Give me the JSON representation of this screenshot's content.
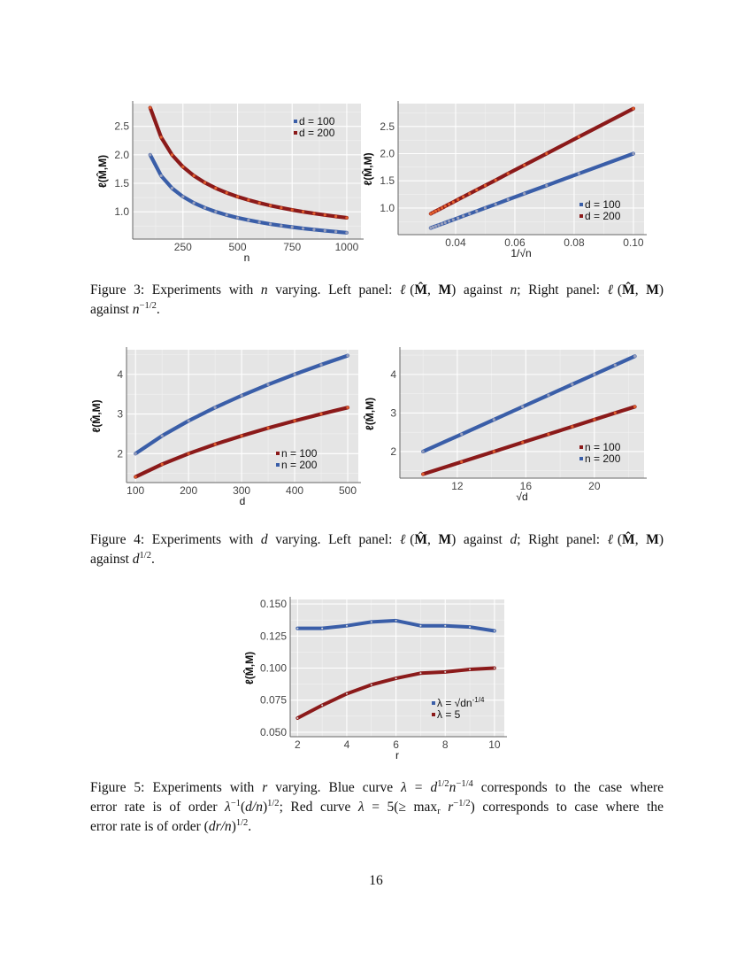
{
  "colors": {
    "panel_bg": "#e5e5e5",
    "grid": "#ffffff",
    "blue": "#3a5ea8",
    "red": "#8b1a1a",
    "blue_marker": "#9aa0bc",
    "red_marker": "#e2602e"
  },
  "chart_data": [
    {
      "type": "line",
      "xlabel": "n",
      "ylabel": "ℓ(M̂,M)",
      "xlim": [
        20,
        1065
      ],
      "ylim": [
        0.52,
        2.9
      ],
      "xticks": [
        "250",
        "500",
        "750",
        "1000"
      ],
      "yticks": [
        "1.0",
        "1.5",
        "2.0",
        "2.5"
      ],
      "grid": true,
      "legend": {
        "position": "top-right",
        "order": [
          0,
          1
        ]
      },
      "series": [
        {
          "name": "d = 100",
          "color": "#3a5ea8",
          "marker": "#9aa0bc",
          "x": [
            100,
            150,
            200,
            250,
            300,
            350,
            400,
            450,
            500,
            550,
            600,
            650,
            700,
            750,
            800,
            850,
            900,
            950,
            1000
          ],
          "y": [
            2.0,
            1.633,
            1.414,
            1.265,
            1.155,
            1.069,
            1.0,
            0.943,
            0.894,
            0.853,
            0.816,
            0.784,
            0.756,
            0.73,
            0.707,
            0.686,
            0.667,
            0.649,
            0.632
          ]
        },
        {
          "name": "d = 200",
          "color": "#8b1a1a",
          "marker": "#e2602e",
          "x": [
            100,
            150,
            200,
            250,
            300,
            350,
            400,
            450,
            500,
            550,
            600,
            650,
            700,
            750,
            800,
            850,
            900,
            950,
            1000
          ],
          "y": [
            2.828,
            2.309,
            2.0,
            1.789,
            1.633,
            1.512,
            1.414,
            1.333,
            1.265,
            1.206,
            1.155,
            1.109,
            1.069,
            1.033,
            1.0,
            0.97,
            0.943,
            0.918,
            0.894
          ]
        }
      ]
    },
    {
      "type": "line",
      "xlabel": "1/√n",
      "ylabel": "ℓ(M̂,M)",
      "xlim": [
        0.0206,
        0.1036
      ],
      "ylim": [
        0.51,
        2.92
      ],
      "xticks": [
        "0.04",
        "0.06",
        "0.08",
        "0.10"
      ],
      "yticks": [
        "1.0",
        "1.5",
        "2.0",
        "2.5"
      ],
      "grid": true,
      "legend": {
        "position": "bottom-right",
        "order": [
          0,
          1
        ]
      },
      "series": [
        {
          "name": "d = 100",
          "color": "#3a5ea8",
          "marker": "#9aa0bc",
          "x": [
            0.1,
            0.0816,
            0.0707,
            0.0632,
            0.0577,
            0.0535,
            0.05,
            0.0471,
            0.0447,
            0.0426,
            0.0408,
            0.0392,
            0.0378,
            0.0365,
            0.0354,
            0.0343,
            0.0333,
            0.0324,
            0.0316
          ],
          "y": [
            2.0,
            1.633,
            1.414,
            1.265,
            1.155,
            1.069,
            1.0,
            0.943,
            0.894,
            0.853,
            0.816,
            0.784,
            0.756,
            0.73,
            0.707,
            0.686,
            0.667,
            0.649,
            0.632
          ]
        },
        {
          "name": "d = 200",
          "color": "#8b1a1a",
          "marker": "#e2602e",
          "x": [
            0.1,
            0.0816,
            0.0707,
            0.0632,
            0.0577,
            0.0535,
            0.05,
            0.0471,
            0.0447,
            0.0426,
            0.0408,
            0.0392,
            0.0378,
            0.0365,
            0.0354,
            0.0343,
            0.0333,
            0.0324,
            0.0316
          ],
          "y": [
            2.828,
            2.309,
            2.0,
            1.789,
            1.633,
            1.512,
            1.414,
            1.333,
            1.265,
            1.206,
            1.155,
            1.109,
            1.069,
            1.033,
            1.0,
            0.97,
            0.943,
            0.918,
            0.894
          ]
        }
      ]
    },
    {
      "type": "line",
      "xlabel": "d",
      "ylabel": "ℓ(M̂,M)",
      "xlim": [
        83,
        520
      ],
      "ylim": [
        1.27,
        4.62
      ],
      "xticks": [
        "100",
        "200",
        "300",
        "400",
        "500"
      ],
      "yticks": [
        "2",
        "3",
        "4"
      ],
      "grid": true,
      "legend": {
        "position": "bottom-right",
        "order": [
          0,
          1
        ]
      },
      "series": [
        {
          "name": "n = 100",
          "color": "#8b1a1a",
          "marker": "#e2602e",
          "x": [
            100,
            150,
            200,
            250,
            300,
            350,
            400,
            450,
            500
          ],
          "y": [
            1.414,
            1.732,
            2.0,
            2.236,
            2.449,
            2.646,
            2.828,
            3.0,
            3.162
          ]
        },
        {
          "name": "n = 200",
          "color": "#3a5ea8",
          "marker": "#9aa0bc",
          "x": [
            100,
            150,
            200,
            250,
            300,
            350,
            400,
            450,
            500
          ],
          "y": [
            2.0,
            2.449,
            2.828,
            3.162,
            3.464,
            3.742,
            4.0,
            4.243,
            4.472
          ]
        }
      ]
    },
    {
      "type": "line",
      "xlabel": "√d",
      "ylabel": "ℓ(M̂,M)",
      "xlim": [
        8.65,
        22.9
      ],
      "ylim": [
        1.31,
        4.64
      ],
      "xticks": [
        "12",
        "16",
        "20"
      ],
      "yticks": [
        "2",
        "3",
        "4"
      ],
      "grid": true,
      "legend": {
        "position": "bottom-right",
        "order": [
          0,
          1
        ]
      },
      "series": [
        {
          "name": "n = 100",
          "color": "#8b1a1a",
          "marker": "#e2602e",
          "x": [
            10,
            12.25,
            14.14,
            15.81,
            17.32,
            18.71,
            20,
            21.21,
            22.36
          ],
          "y": [
            1.414,
            1.732,
            2.0,
            2.236,
            2.449,
            2.646,
            2.828,
            3.0,
            3.162
          ]
        },
        {
          "name": "n = 200",
          "color": "#3a5ea8",
          "marker": "#9aa0bc",
          "x": [
            10,
            12.25,
            14.14,
            15.81,
            17.32,
            18.71,
            20,
            21.21,
            22.36
          ],
          "y": [
            2.0,
            2.449,
            2.828,
            3.162,
            3.464,
            3.742,
            4.0,
            4.243,
            4.472
          ]
        }
      ]
    },
    {
      "type": "line",
      "xlabel": "r",
      "ylabel": "ℓ(M̂,M)",
      "xlim": [
        1.7,
        10.4
      ],
      "ylim": [
        0.0465,
        0.1535
      ],
      "xticks": [
        "2",
        "4",
        "6",
        "8",
        "10"
      ],
      "yticks": [
        "0.050",
        "0.075",
        "0.100",
        "0.125",
        "0.150"
      ],
      "grid": true,
      "legend": {
        "position": "bottom-right",
        "order": [
          0,
          1
        ]
      },
      "series": [
        {
          "name": "λ = √dn",
          "name_sup": "-1/4",
          "color": "#3a5ea8",
          "marker": "#3a5ea8",
          "x": [
            2,
            3,
            4,
            5,
            6,
            7,
            8,
            9,
            10
          ],
          "y": [
            0.131,
            0.131,
            0.133,
            0.136,
            0.137,
            0.133,
            0.133,
            0.132,
            0.129
          ]
        },
        {
          "name": "λ = 5",
          "color": "#8b1a1a",
          "marker": "#8b1a1a",
          "x": [
            2,
            3,
            4,
            5,
            6,
            7,
            8,
            9,
            10
          ],
          "y": [
            0.061,
            0.071,
            0.08,
            0.087,
            0.092,
            0.096,
            0.097,
            0.099,
            0.1
          ]
        }
      ]
    }
  ],
  "captions": [
    {
      "lines": [
        [
          {
            "t": "Figure 3: Experiments with "
          },
          {
            "t": "n",
            "s": "i"
          },
          {
            "t": " varying.  Left panel: "
          },
          {
            "t": "ℓ",
            "s": "i"
          },
          {
            "t": "("
          },
          {
            "t": "M̂",
            "s": "b"
          },
          {
            "t": ", "
          },
          {
            "t": "M",
            "s": "b"
          },
          {
            "t": ") against "
          },
          {
            "t": "n",
            "s": "i"
          },
          {
            "t": "; Right panel: "
          },
          {
            "t": "ℓ",
            "s": "i"
          },
          {
            "t": "("
          },
          {
            "t": "M̂",
            "s": "b"
          },
          {
            "t": ", "
          },
          {
            "t": "M",
            "s": "b"
          },
          {
            "t": ")"
          }
        ],
        [
          {
            "t": "against "
          },
          {
            "t": "n",
            "s": "i"
          },
          {
            "t": "−1/2",
            "s": "sup"
          },
          {
            "t": "."
          }
        ]
      ]
    },
    {
      "lines": [
        [
          {
            "t": "Figure 4: Experiments with "
          },
          {
            "t": "d",
            "s": "i"
          },
          {
            "t": " varying.  Left panel: "
          },
          {
            "t": "ℓ",
            "s": "i"
          },
          {
            "t": "("
          },
          {
            "t": "M̂",
            "s": "b"
          },
          {
            "t": ", "
          },
          {
            "t": "M",
            "s": "b"
          },
          {
            "t": ") against "
          },
          {
            "t": "d",
            "s": "i"
          },
          {
            "t": "; Right panel: "
          },
          {
            "t": "ℓ",
            "s": "i"
          },
          {
            "t": "("
          },
          {
            "t": "M̂",
            "s": "b"
          },
          {
            "t": ", "
          },
          {
            "t": "M",
            "s": "b"
          },
          {
            "t": ")"
          }
        ],
        [
          {
            "t": "against "
          },
          {
            "t": "d",
            "s": "i"
          },
          {
            "t": "1/2",
            "s": "sup"
          },
          {
            "t": "."
          }
        ]
      ]
    },
    {
      "lines": [
        [
          {
            "t": "Figure 5: Experiments with "
          },
          {
            "t": "r",
            "s": "i"
          },
          {
            "t": " varying. Blue curve "
          },
          {
            "t": "λ",
            "s": "i"
          },
          {
            "t": " = "
          },
          {
            "t": "d",
            "s": "i"
          },
          {
            "t": "1/2",
            "s": "sup"
          },
          {
            "t": "n",
            "s": "i"
          },
          {
            "t": "−1/4",
            "s": "sup"
          },
          {
            "t": " corresponds to the case where"
          }
        ],
        [
          {
            "t": "error rate is of order "
          },
          {
            "t": "λ",
            "s": "i"
          },
          {
            "t": "−1",
            "s": "sup"
          },
          {
            "t": "("
          },
          {
            "t": "d/n",
            "s": "i"
          },
          {
            "t": ")"
          },
          {
            "t": "1/2",
            "s": "sup"
          },
          {
            "t": "; Red curve "
          },
          {
            "t": "λ",
            "s": "i"
          },
          {
            "t": " = 5(≥ max"
          },
          {
            "t": "r",
            "s": "sub"
          },
          {
            "t": " "
          },
          {
            "t": "r",
            "s": "i"
          },
          {
            "t": "−1/2",
            "s": "sup"
          },
          {
            "t": ") corresponds to case where the"
          }
        ],
        [
          {
            "t": "error rate is of order ("
          },
          {
            "t": "dr/n",
            "s": "i"
          },
          {
            "t": ")"
          },
          {
            "t": "1/2",
            "s": "sup"
          },
          {
            "t": "."
          }
        ]
      ]
    }
  ],
  "page_number": "16"
}
